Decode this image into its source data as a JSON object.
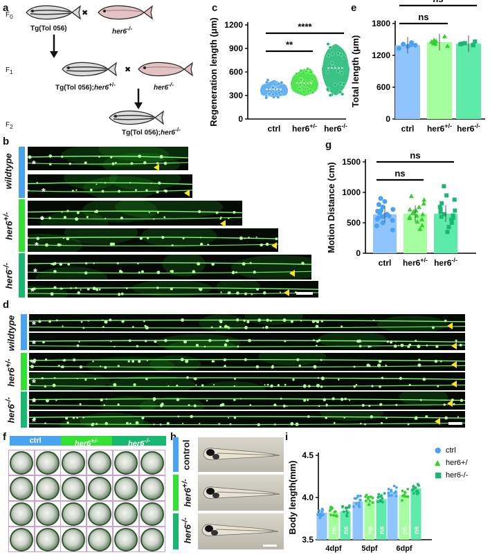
{
  "panels": {
    "a": "a",
    "b": "b",
    "c": "c",
    "d": "d",
    "e": "e",
    "f": "f",
    "g": "g",
    "h": "h",
    "i": "i"
  },
  "panel_a": {
    "gens": [
      "F",
      "F",
      "F"
    ],
    "gen_subs": [
      "0",
      "1",
      "2"
    ],
    "fish": {
      "f0_left": "Tg(Tol 056)",
      "f0_right": "her6",
      "f0_right_sup": "-/-",
      "f1_left": "Tg(Tol 056);",
      "f1_left_it": "her6",
      "f1_left_sup": "+/-",
      "f1_right": "her6",
      "f1_right_sup": "-/-",
      "f2": "Tg(Tol 056);",
      "f2_it": "her6",
      "f2_sup": "-/-"
    },
    "cross": "✖"
  },
  "panel_b": {
    "rows": [
      {
        "label": "wildtype",
        "sup": "",
        "color": "#4aa3f0"
      },
      {
        "label": "her6",
        "sup": "+/-",
        "color": "#33e033"
      },
      {
        "label": "her6",
        "sup": "-/-",
        "color": "#19b870"
      }
    ],
    "star": "*"
  },
  "panel_d": {
    "rows": [
      {
        "label": "wildtype",
        "sup": "",
        "color": "#4aa3f0"
      },
      {
        "label": "her6",
        "sup": "+/-",
        "color": "#33e033"
      },
      {
        "label": "her6",
        "sup": "-/-",
        "color": "#19b870"
      }
    ],
    "star": "*"
  },
  "panel_f": {
    "headers": [
      {
        "label": "ctrl",
        "sup": "",
        "color": "#4aa3f0"
      },
      {
        "label": "her6",
        "sup": "+/-",
        "color": "#33e033"
      },
      {
        "label": "her6",
        "sup": "-/-",
        "color": "#19b870"
      }
    ]
  },
  "panel_h": {
    "labels": [
      {
        "text": "control",
        "sup": ""
      },
      {
        "text": "her6",
        "sup": "+/-"
      },
      {
        "text": "her6",
        "sup": "-/-"
      }
    ],
    "colors": [
      "#4aa3f0",
      "#33e033",
      "#19b870"
    ]
  },
  "chart_data": [
    {
      "id": "c",
      "type": "violin",
      "ylabel": "Regeneration length (μm)",
      "yticks": [
        "0",
        "300",
        "600",
        "900",
        "1200"
      ],
      "ylim": [
        0,
        1200
      ],
      "categories": [
        {
          "name": "ctrl",
          "sup": "",
          "median": 380,
          "min": 270,
          "max": 500,
          "color": "#4aa3f0"
        },
        {
          "name": "her6",
          "sup": "+/-",
          "median": 460,
          "min": 290,
          "max": 640,
          "color": "#33e033"
        },
        {
          "name": "her6",
          "sup": "-/-",
          "median": 650,
          "min": 300,
          "max": 960,
          "color": "#19b870"
        }
      ],
      "significance": [
        {
          "from": 0,
          "to": 1,
          "label": "**"
        },
        {
          "from": 0,
          "to": 2,
          "label": "****"
        }
      ]
    },
    {
      "id": "e",
      "type": "bar",
      "ylabel": "Total length (μm)",
      "yticks": [
        "0",
        "600",
        "1200",
        "1800"
      ],
      "ylim": [
        0,
        1800
      ],
      "categories": [
        {
          "name": "ctrl",
          "sup": "",
          "value": 1390,
          "color": "#8fc4ff",
          "points": [
            1330,
            1370,
            1390,
            1410,
            1440,
            1400
          ]
        },
        {
          "name": "her6",
          "sup": "+/-",
          "value": 1450,
          "color": "#a6ff9e",
          "points": [
            1380,
            1420,
            1460,
            1490,
            1560,
            1430,
            1470
          ]
        },
        {
          "name": "her6",
          "sup": "-/-",
          "value": 1420,
          "color": "#5eeaa8",
          "points": [
            1390,
            1410,
            1430,
            1420,
            1460,
            1400
          ]
        }
      ],
      "significance": [
        {
          "from": 0,
          "to": 1,
          "label": "ns"
        },
        {
          "from": 0,
          "to": 2,
          "label": "ns"
        }
      ]
    },
    {
      "id": "g",
      "type": "bar",
      "ylabel": "Motion Distance (cm)",
      "yticks": [
        "0",
        "500",
        "1000",
        "1500"
      ],
      "ylim": [
        0,
        1500
      ],
      "categories": [
        {
          "name": "ctrl",
          "sup": "",
          "value": 640,
          "color": "#8fc4ff",
          "points": [
            380,
            450,
            500,
            540,
            580,
            600,
            620,
            640,
            660,
            690,
            720,
            760,
            800,
            850,
            900,
            560,
            610,
            700
          ]
        },
        {
          "name": "her6",
          "sup": "+/-",
          "value": 650,
          "color": "#a6ff9e",
          "points": [
            400,
            460,
            520,
            560,
            600,
            640,
            660,
            690,
            720,
            760,
            820,
            880,
            940,
            580,
            620,
            700
          ]
        },
        {
          "name": "her6",
          "sup": "-/-",
          "value": 650,
          "color": "#5eeaa8",
          "points": [
            350,
            430,
            500,
            550,
            600,
            640,
            680,
            720,
            760,
            820,
            880,
            950,
            1100,
            580,
            620,
            700
          ]
        }
      ],
      "significance": [
        {
          "from": 0,
          "to": 1,
          "label": "ns"
        },
        {
          "from": 0,
          "to": 2,
          "label": "ns"
        }
      ]
    },
    {
      "id": "i",
      "type": "bar",
      "ylabel": "Body  length(mm)",
      "yticks": [
        "3.5",
        "4.0",
        "4.5"
      ],
      "ylim": [
        3.5,
        4.5
      ],
      "groups": [
        "4dpf",
        "5dpf",
        "6dpf"
      ],
      "series": [
        {
          "name": "ctrl",
          "color": "#8fc4ff",
          "marker": "●",
          "values": [
            3.82,
            3.95,
            4.07
          ]
        },
        {
          "name": "her6+/",
          "color": "#a6ff9e",
          "marker": "▲",
          "values": [
            3.82,
            3.96,
            4.03
          ]
        },
        {
          "name": "her6-/-",
          "color": "#5eeaa8",
          "marker": "■",
          "values": [
            3.84,
            3.98,
            4.11
          ]
        }
      ],
      "bar_text": "ns"
    }
  ]
}
